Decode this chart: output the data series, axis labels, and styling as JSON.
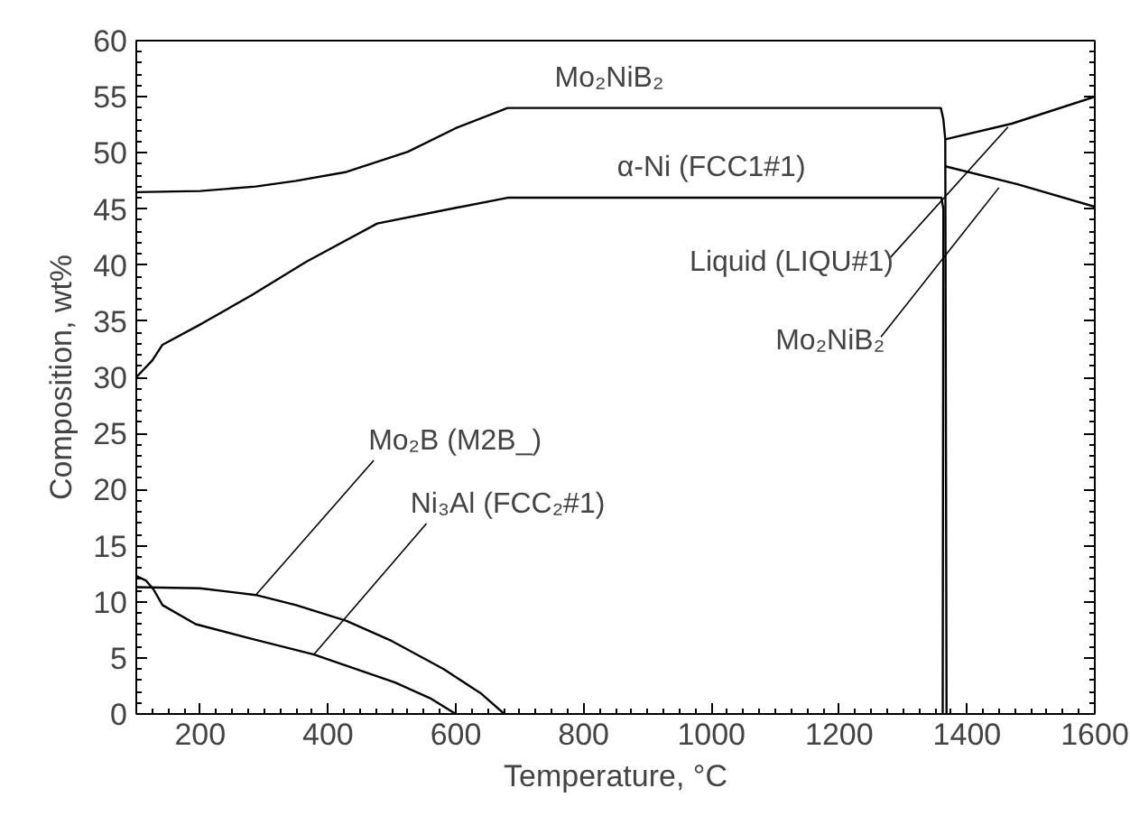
{
  "chart_data": {
    "type": "line",
    "xlabel": "Temperature, °C",
    "ylabel": "Composition, wt%",
    "xlim": [
      100,
      1600
    ],
    "ylim": [
      0,
      60
    ],
    "xticks": [
      200,
      400,
      600,
      800,
      1000,
      1200,
      1400,
      1600
    ],
    "yticks": [
      0,
      5,
      10,
      15,
      20,
      25,
      30,
      35,
      40,
      45,
      50,
      55,
      60
    ],
    "grid": false,
    "line_style": "solid",
    "series": [
      {
        "color": "#000000",
        "x": [
          100,
          200,
          287,
          350,
          429,
          525,
          600,
          681,
          1359,
          1363,
          1366,
          1368
        ],
        "values": [
          46.5,
          46.6,
          47.0,
          47.5,
          48.3,
          50.1,
          52.2,
          54.0,
          54.0,
          53.0,
          51.2,
          0
        ]
      },
      {
        "color": "#000000",
        "x": [
          100,
          110,
          125,
          141,
          203,
          280,
          366,
          477,
          600,
          681,
          1360,
          1363,
          1362
        ],
        "values": [
          30.0,
          30.6,
          31.5,
          32.9,
          34.8,
          37.3,
          40.3,
          43.7,
          45.1,
          46.0,
          46.0,
          45.0,
          0
        ]
      },
      {
        "color": "#000000",
        "x": [
          1366,
          1470,
          1600
        ],
        "values": [
          51.2,
          52.6,
          55.0
        ]
      },
      {
        "color": "#000000",
        "x": [
          1366,
          1479,
          1600
        ],
        "values": [
          48.8,
          47.2,
          45.2
        ]
      },
      {
        "color": "#000000",
        "x": [
          100,
          200,
          287,
          350,
          429,
          500,
          581,
          640,
          676
        ],
        "values": [
          11.3,
          11.2,
          10.6,
          9.7,
          8.3,
          6.5,
          4.0,
          1.8,
          0
        ]
      },
      {
        "color": "#000000",
        "x": [
          100,
          115,
          127,
          141,
          193,
          280,
          378,
          505,
          560,
          600
        ],
        "values": [
          12.3,
          11.9,
          11.1,
          9.7,
          8.0,
          6.7,
          5.3,
          2.8,
          1.4,
          0
        ]
      }
    ],
    "annotations": [
      {
        "text": "Mo₂NiB₂",
        "x": 840,
        "y": 54
      },
      {
        "text": "α-Ni (FCC1#1)",
        "x": 1000,
        "y": 46
      },
      {
        "text": "Liquid (LIQU#1)",
        "x": 1464,
        "y": 52.3
      },
      {
        "text": "Mo₂NiB₂",
        "x": 1450,
        "y": 46.9
      },
      {
        "text": "Mo₂B (M2B_)",
        "x": 287,
        "y": 10.6
      },
      {
        "text": "Ni₃Al (FCC₂#1)",
        "x": 378,
        "y": 5.3
      }
    ]
  }
}
